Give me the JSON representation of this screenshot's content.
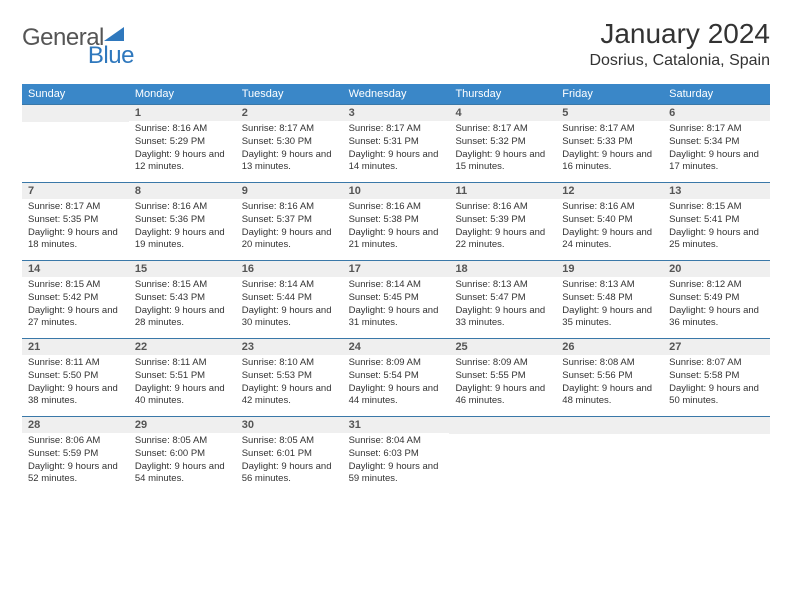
{
  "logo": {
    "word1": "General",
    "word2": "Blue"
  },
  "title": "January 2024",
  "location": "Dosrius, Catalonia, Spain",
  "brand_color": "#2f78bd",
  "header_bg": "#3a87c8",
  "daynum_bg": "#efefef",
  "cell_border": "#3a78a8",
  "weekdays": [
    "Sunday",
    "Monday",
    "Tuesday",
    "Wednesday",
    "Thursday",
    "Friday",
    "Saturday"
  ],
  "weeks": [
    [
      null,
      {
        "n": "1",
        "sr": "8:16 AM",
        "ss": "5:29 PM",
        "dl": "9 hours and 12 minutes."
      },
      {
        "n": "2",
        "sr": "8:17 AM",
        "ss": "5:30 PM",
        "dl": "9 hours and 13 minutes."
      },
      {
        "n": "3",
        "sr": "8:17 AM",
        "ss": "5:31 PM",
        "dl": "9 hours and 14 minutes."
      },
      {
        "n": "4",
        "sr": "8:17 AM",
        "ss": "5:32 PM",
        "dl": "9 hours and 15 minutes."
      },
      {
        "n": "5",
        "sr": "8:17 AM",
        "ss": "5:33 PM",
        "dl": "9 hours and 16 minutes."
      },
      {
        "n": "6",
        "sr": "8:17 AM",
        "ss": "5:34 PM",
        "dl": "9 hours and 17 minutes."
      }
    ],
    [
      {
        "n": "7",
        "sr": "8:17 AM",
        "ss": "5:35 PM",
        "dl": "9 hours and 18 minutes."
      },
      {
        "n": "8",
        "sr": "8:16 AM",
        "ss": "5:36 PM",
        "dl": "9 hours and 19 minutes."
      },
      {
        "n": "9",
        "sr": "8:16 AM",
        "ss": "5:37 PM",
        "dl": "9 hours and 20 minutes."
      },
      {
        "n": "10",
        "sr": "8:16 AM",
        "ss": "5:38 PM",
        "dl": "9 hours and 21 minutes."
      },
      {
        "n": "11",
        "sr": "8:16 AM",
        "ss": "5:39 PM",
        "dl": "9 hours and 22 minutes."
      },
      {
        "n": "12",
        "sr": "8:16 AM",
        "ss": "5:40 PM",
        "dl": "9 hours and 24 minutes."
      },
      {
        "n": "13",
        "sr": "8:15 AM",
        "ss": "5:41 PM",
        "dl": "9 hours and 25 minutes."
      }
    ],
    [
      {
        "n": "14",
        "sr": "8:15 AM",
        "ss": "5:42 PM",
        "dl": "9 hours and 27 minutes."
      },
      {
        "n": "15",
        "sr": "8:15 AM",
        "ss": "5:43 PM",
        "dl": "9 hours and 28 minutes."
      },
      {
        "n": "16",
        "sr": "8:14 AM",
        "ss": "5:44 PM",
        "dl": "9 hours and 30 minutes."
      },
      {
        "n": "17",
        "sr": "8:14 AM",
        "ss": "5:45 PM",
        "dl": "9 hours and 31 minutes."
      },
      {
        "n": "18",
        "sr": "8:13 AM",
        "ss": "5:47 PM",
        "dl": "9 hours and 33 minutes."
      },
      {
        "n": "19",
        "sr": "8:13 AM",
        "ss": "5:48 PM",
        "dl": "9 hours and 35 minutes."
      },
      {
        "n": "20",
        "sr": "8:12 AM",
        "ss": "5:49 PM",
        "dl": "9 hours and 36 minutes."
      }
    ],
    [
      {
        "n": "21",
        "sr": "8:11 AM",
        "ss": "5:50 PM",
        "dl": "9 hours and 38 minutes."
      },
      {
        "n": "22",
        "sr": "8:11 AM",
        "ss": "5:51 PM",
        "dl": "9 hours and 40 minutes."
      },
      {
        "n": "23",
        "sr": "8:10 AM",
        "ss": "5:53 PM",
        "dl": "9 hours and 42 minutes."
      },
      {
        "n": "24",
        "sr": "8:09 AM",
        "ss": "5:54 PM",
        "dl": "9 hours and 44 minutes."
      },
      {
        "n": "25",
        "sr": "8:09 AM",
        "ss": "5:55 PM",
        "dl": "9 hours and 46 minutes."
      },
      {
        "n": "26",
        "sr": "8:08 AM",
        "ss": "5:56 PM",
        "dl": "9 hours and 48 minutes."
      },
      {
        "n": "27",
        "sr": "8:07 AM",
        "ss": "5:58 PM",
        "dl": "9 hours and 50 minutes."
      }
    ],
    [
      {
        "n": "28",
        "sr": "8:06 AM",
        "ss": "5:59 PM",
        "dl": "9 hours and 52 minutes."
      },
      {
        "n": "29",
        "sr": "8:05 AM",
        "ss": "6:00 PM",
        "dl": "9 hours and 54 minutes."
      },
      {
        "n": "30",
        "sr": "8:05 AM",
        "ss": "6:01 PM",
        "dl": "9 hours and 56 minutes."
      },
      {
        "n": "31",
        "sr": "8:04 AM",
        "ss": "6:03 PM",
        "dl": "9 hours and 59 minutes."
      },
      null,
      null,
      null
    ]
  ],
  "labels": {
    "sunrise": "Sunrise:",
    "sunset": "Sunset:",
    "daylight": "Daylight:"
  }
}
